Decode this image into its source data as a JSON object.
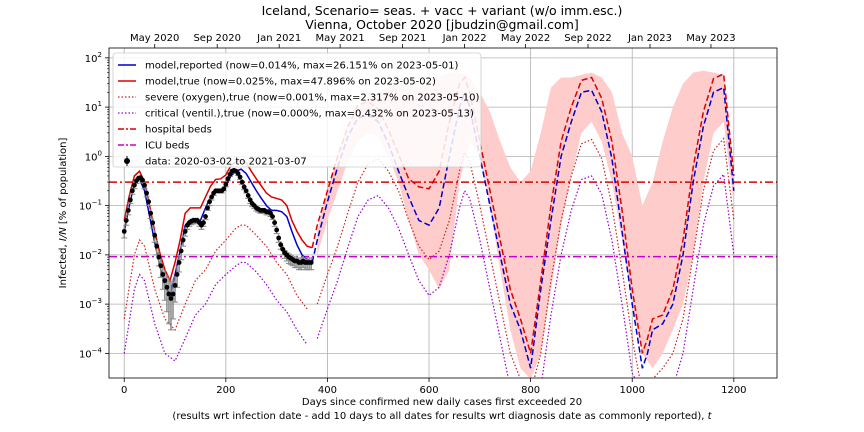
{
  "chart_data": {
    "type": "line",
    "title_line1": "Iceland, Scenario= seas. + vacc + variant (w/o imm.esc.)",
    "title_line2": "Vienna, October 2020 [jbudzin@gmail.com]",
    "xlabel": "Days since confirmed new daily cases first exceeded 20",
    "xlabel_line2_prefix": "(results wrt infection date - add 10 days to all dates for results wrt diagnosis date as commonly reported), ",
    "xlabel_line2_var": "t",
    "ylabel_prefix": "Infected, ",
    "ylabel_var": "I/N",
    "ylabel_suffix": " [% of population]",
    "xlim": [
      -30,
      1285
    ],
    "ylim_log10": [
      -4.5,
      2.2
    ],
    "log_scale_y": true,
    "grid": true,
    "legend_placement": "top-left",
    "x_ticks": [
      0,
      200,
      400,
      600,
      800,
      1000,
      1200
    ],
    "x_tick_labels": [
      "0",
      "200",
      "400",
      "600",
      "800",
      "1000",
      "1200"
    ],
    "y_ticks_log10": [
      -4,
      -3,
      -2,
      -1,
      0,
      1,
      2
    ],
    "y_tick_labels": [
      {
        "base": "10",
        "exp": "−4"
      },
      {
        "base": "10",
        "exp": "−3"
      },
      {
        "base": "10",
        "exp": "−2"
      },
      {
        "base": "10",
        "exp": "−1"
      },
      {
        "base": "10",
        "exp": "0"
      },
      {
        "base": "10",
        "exp": "1"
      },
      {
        "base": "10",
        "exp": "2"
      }
    ],
    "top_axis_ticks": [
      {
        "x": 60,
        "label": "May 2020"
      },
      {
        "x": 183,
        "label": "Sep 2020"
      },
      {
        "x": 305,
        "label": "Jan 2021"
      },
      {
        "x": 425,
        "label": "May 2021"
      },
      {
        "x": 548,
        "label": "Sep 2021"
      },
      {
        "x": 670,
        "label": "Jan 2022"
      },
      {
        "x": 790,
        "label": "May 2022"
      },
      {
        "x": 913,
        "label": "Sep 2022"
      },
      {
        "x": 1035,
        "label": "Jan 2023"
      },
      {
        "x": 1155,
        "label": "May 2023"
      }
    ],
    "legend": [
      {
        "key": "reported",
        "label": "model,reported (now=0.014%, max=26.151% on 2023-05-01)"
      },
      {
        "key": "true",
        "label": "model,true (now=0.025%, max=47.896% on 2023-05-02)"
      },
      {
        "key": "severe",
        "label": "severe (oxygen),true (now=0.001%, max=2.317% on 2023-05-10)"
      },
      {
        "key": "critical",
        "label": "critical (ventil.),true (now=0.000%, max=0.432% on 2023-05-13)"
      },
      {
        "key": "hospital",
        "label": "hospital beds"
      },
      {
        "key": "icu",
        "label": "ICU beds"
      },
      {
        "key": "data",
        "label": "data: 2020-03-02 to 2021-03-07"
      }
    ],
    "colors": {
      "reported": "#0000cc",
      "true": "#dd0000",
      "severe": "#cc2222",
      "critical": "#9900cc",
      "hospital": "#dd0000",
      "icu": "#cc00cc",
      "band": "#ffcccc",
      "data": "#000000",
      "errorbar": "#888888"
    },
    "hospital_beds_pct": 0.3,
    "icu_beds_pct": 0.0092,
    "data_day_range": [
      0,
      370
    ],
    "series": [
      {
        "key": "reported",
        "x": [
          0,
          10,
          20,
          30,
          40,
          50,
          60,
          70,
          80,
          90,
          100,
          110,
          120,
          130,
          140,
          150,
          160,
          170,
          180,
          190,
          200,
          210,
          220,
          230,
          240,
          250,
          260,
          270,
          280,
          290,
          300,
          310,
          320,
          330,
          340,
          350,
          360,
          370,
          380,
          400,
          420,
          440,
          460,
          480,
          500,
          520,
          540,
          560,
          580,
          600,
          620,
          640,
          660,
          670,
          680,
          700,
          720,
          740,
          760,
          780,
          800,
          820,
          840,
          860,
          880,
          900,
          920,
          940,
          960,
          980,
          1000,
          1020,
          1030,
          1040,
          1060,
          1080,
          1100,
          1120,
          1140,
          1160,
          1180,
          1200
        ],
        "y": [
          0.03,
          0.1,
          0.28,
          0.35,
          0.2,
          0.06,
          0.018,
          0.006,
          0.0025,
          0.0015,
          0.004,
          0.012,
          0.04,
          0.05,
          0.05,
          0.05,
          0.09,
          0.15,
          0.2,
          0.2,
          0.25,
          0.4,
          0.5,
          0.55,
          0.45,
          0.3,
          0.2,
          0.14,
          0.1,
          0.08,
          0.08,
          0.075,
          0.06,
          0.03,
          0.016,
          0.01,
          0.008,
          0.007,
          0.02,
          0.12,
          0.6,
          2.5,
          6,
          7,
          5,
          1.8,
          0.5,
          0.15,
          0.05,
          0.04,
          0.09,
          1,
          10,
          20,
          10,
          1,
          0.1,
          0.01,
          0.001,
          0.0003,
          5e-05,
          0.002,
          0.05,
          1,
          5,
          20,
          22,
          8,
          0.9,
          0.03,
          0.001,
          5e-05,
          0.0001,
          0.0003,
          0.0004,
          0.001,
          0.01,
          0.3,
          4,
          20,
          25,
          0.2
        ]
      },
      {
        "key": "true",
        "x": [
          0,
          10,
          20,
          30,
          40,
          50,
          60,
          70,
          80,
          90,
          100,
          110,
          120,
          130,
          140,
          150,
          160,
          170,
          180,
          190,
          200,
          210,
          220,
          230,
          240,
          250,
          260,
          270,
          280,
          290,
          300,
          310,
          320,
          330,
          340,
          350,
          360,
          370,
          380,
          400,
          420,
          440,
          460,
          480,
          500,
          520,
          540,
          560,
          580,
          600,
          620,
          640,
          660,
          670,
          680,
          700,
          720,
          740,
          760,
          780,
          800,
          820,
          840,
          860,
          880,
          900,
          920,
          940,
          960,
          980,
          1000,
          1020,
          1030,
          1040,
          1060,
          1080,
          1100,
          1120,
          1140,
          1160,
          1180,
          1200
        ],
        "y": [
          0.05,
          0.16,
          0.4,
          0.5,
          0.3,
          0.1,
          0.03,
          0.011,
          0.005,
          0.003,
          0.007,
          0.02,
          0.07,
          0.09,
          0.09,
          0.09,
          0.15,
          0.25,
          0.34,
          0.35,
          0.42,
          0.65,
          0.8,
          0.85,
          0.75,
          0.5,
          0.35,
          0.25,
          0.18,
          0.15,
          0.14,
          0.13,
          0.1,
          0.05,
          0.03,
          0.02,
          0.015,
          0.014,
          0.04,
          0.2,
          1,
          4,
          11,
          13,
          9,
          3.5,
          1.1,
          0.35,
          0.24,
          0.22,
          0.5,
          5,
          30,
          40,
          20,
          2,
          0.2,
          0.02,
          0.002,
          0.0005,
          0.0001,
          0.003,
          0.1,
          2,
          10,
          35,
          40,
          15,
          2,
          0.08,
          0.002,
          0.0001,
          0.0002,
          0.0005,
          0.0006,
          0.002,
          0.02,
          0.6,
          8,
          38,
          47,
          0.4
        ]
      },
      {
        "key": "severe",
        "x": [
          0,
          20,
          30,
          40,
          60,
          80,
          100,
          120,
          140,
          160,
          180,
          200,
          220,
          230,
          240,
          260,
          280,
          300,
          320,
          340,
          360,
          380,
          400,
          420,
          440,
          460,
          480,
          500,
          520,
          540,
          560,
          580,
          600,
          620,
          640,
          660,
          670,
          680,
          700,
          720,
          740,
          760,
          780,
          800,
          820,
          840,
          860,
          880,
          900,
          920,
          940,
          960,
          980,
          1000,
          1020,
          1040,
          1060,
          1080,
          1100,
          1120,
          1140,
          1160,
          1180,
          1200
        ],
        "y": [
          0.0005,
          0.01,
          0.02,
          0.015,
          0.002,
          0.0005,
          0.0003,
          0.001,
          0.003,
          0.005,
          0.012,
          0.02,
          0.035,
          0.04,
          0.04,
          0.025,
          0.015,
          0.007,
          0.004,
          0.0015,
          0.0008,
          0.001,
          0.004,
          0.015,
          0.07,
          0.3,
          0.7,
          0.9,
          0.5,
          0.2,
          0.05,
          0.015,
          0.008,
          0.012,
          0.05,
          0.5,
          1.2,
          0.8,
          0.1,
          0.01,
          0.001,
          0.0001,
          3e-05,
          1e-05,
          0.0001,
          0.003,
          0.05,
          0.4,
          1.8,
          2.2,
          0.9,
          0.1,
          0.005,
          0.0002,
          1e-05,
          3e-05,
          5e-05,
          0.0001,
          0.0005,
          0.01,
          0.2,
          1.3,
          2.3,
          0.05
        ]
      },
      {
        "key": "critical",
        "x": [
          0,
          20,
          30,
          40,
          60,
          80,
          100,
          120,
          140,
          160,
          180,
          200,
          220,
          230,
          240,
          260,
          280,
          300,
          320,
          340,
          360,
          380,
          400,
          420,
          440,
          460,
          480,
          500,
          520,
          540,
          560,
          580,
          600,
          620,
          640,
          660,
          670,
          680,
          700,
          720,
          740,
          760,
          780,
          800,
          820,
          840,
          860,
          880,
          900,
          920,
          940,
          960,
          980,
          1000,
          1020,
          1040,
          1060,
          1080,
          1100,
          1120,
          1140,
          1160,
          1180,
          1200
        ],
        "y": [
          0.0001,
          0.002,
          0.004,
          0.003,
          0.0004,
          0.0001,
          7e-05,
          0.0002,
          0.0006,
          0.001,
          0.0025,
          0.004,
          0.006,
          0.007,
          0.007,
          0.0045,
          0.0025,
          0.0012,
          0.0007,
          0.0003,
          0.00015,
          0.0002,
          0.0008,
          0.003,
          0.014,
          0.06,
          0.13,
          0.16,
          0.09,
          0.035,
          0.01,
          0.003,
          0.0015,
          0.0022,
          0.01,
          0.09,
          0.2,
          0.14,
          0.02,
          0.002,
          0.0002,
          2e-05,
          6e-06,
          3e-06,
          2e-05,
          0.0006,
          0.01,
          0.08,
          0.34,
          0.4,
          0.17,
          0.02,
          0.001,
          4e-05,
          3e-06,
          6e-06,
          1e-05,
          2e-05,
          0.0001,
          0.002,
          0.04,
          0.25,
          0.43,
          0.01
        ]
      }
    ],
    "band": {
      "x": [
        380,
        400,
        420,
        440,
        460,
        480,
        500,
        520,
        540,
        560,
        580,
        600,
        620,
        640,
        660,
        680,
        700,
        720,
        740,
        760,
        780,
        800,
        820,
        840,
        860,
        880,
        900,
        920,
        940,
        960,
        980,
        1000,
        1020,
        1040,
        1060,
        1080,
        1100,
        1120,
        1140,
        1160,
        1180,
        1200
      ],
      "upper": [
        0.03,
        0.2,
        1,
        4,
        10,
        15,
        20,
        25,
        30,
        28,
        25,
        30,
        40,
        50,
        50,
        40,
        20,
        8,
        2,
        0.6,
        0.3,
        0.5,
        3,
        25,
        40,
        40,
        45,
        50,
        40,
        20,
        3,
        1,
        0.1,
        0.3,
        2,
        10,
        30,
        50,
        55,
        50,
        45,
        0.6
      ],
      "lower": [
        0.01,
        0.05,
        0.2,
        0.8,
        2,
        3,
        2.5,
        1,
        0.3,
        0.05,
        0.01,
        0.005,
        0.002,
        0.005,
        0.3,
        2,
        1,
        0.1,
        0.005,
        0.0003,
        5e-05,
        3e-05,
        0.0001,
        0.002,
        0.04,
        0.4,
        3,
        5,
        2,
        0.3,
        0.02,
        0.001,
        0.0001,
        5e-05,
        0.0001,
        0.0003,
        0.001,
        0.01,
        0.3,
        3,
        5,
        0.1
      ]
    },
    "observations": {
      "x": [
        0,
        4,
        8,
        12,
        16,
        20,
        24,
        28,
        32,
        36,
        40,
        44,
        48,
        52,
        56,
        60,
        64,
        68,
        72,
        76,
        80,
        84,
        88,
        92,
        96,
        100,
        104,
        108,
        112,
        116,
        120,
        124,
        128,
        132,
        136,
        140,
        144,
        148,
        152,
        156,
        160,
        164,
        168,
        172,
        176,
        180,
        184,
        188,
        192,
        196,
        200,
        204,
        208,
        212,
        216,
        220,
        224,
        228,
        232,
        236,
        240,
        244,
        248,
        252,
        256,
        260,
        264,
        268,
        272,
        276,
        280,
        284,
        288,
        292,
        296,
        300,
        304,
        308,
        312,
        316,
        320,
        324,
        328,
        332,
        336,
        340,
        344,
        348,
        352,
        356,
        360,
        364,
        368
      ],
      "y": [
        0.03,
        0.05,
        0.08,
        0.13,
        0.2,
        0.26,
        0.32,
        0.36,
        0.37,
        0.33,
        0.26,
        0.18,
        0.12,
        0.07,
        0.045,
        0.025,
        0.015,
        0.009,
        0.006,
        0.004,
        0.003,
        0.0022,
        0.0016,
        0.0013,
        0.0016,
        0.0024,
        0.004,
        0.007,
        0.012,
        0.02,
        0.03,
        0.04,
        0.045,
        0.048,
        0.05,
        0.05,
        0.05,
        0.045,
        0.04,
        0.045,
        0.06,
        0.09,
        0.12,
        0.15,
        0.18,
        0.2,
        0.2,
        0.2,
        0.2,
        0.22,
        0.27,
        0.35,
        0.43,
        0.5,
        0.52,
        0.5,
        0.45,
        0.38,
        0.3,
        0.24,
        0.2,
        0.16,
        0.13,
        0.11,
        0.1,
        0.09,
        0.085,
        0.08,
        0.08,
        0.08,
        0.075,
        0.075,
        0.07,
        0.06,
        0.045,
        0.032,
        0.022,
        0.016,
        0.013,
        0.011,
        0.01,
        0.009,
        0.0085,
        0.008,
        0.0075,
        0.0075,
        0.007,
        0.007,
        0.0075,
        0.007,
        0.007,
        0.007,
        0.007
      ],
      "err_lo": [
        0.022,
        0.04,
        0.065,
        0.11,
        0.17,
        0.22,
        0.28,
        0.32,
        0.33,
        0.29,
        0.22,
        0.15,
        0.1,
        0.055,
        0.035,
        0.018,
        0.01,
        0.006,
        0.0035,
        0.002,
        0.0012,
        0.0007,
        0.0004,
        0.0003,
        0.0005,
        0.0011,
        0.0022,
        0.0045,
        0.008,
        0.015,
        0.024,
        0.033,
        0.038,
        0.041,
        0.043,
        0.043,
        0.043,
        0.038,
        0.033,
        0.038,
        0.052,
        0.08,
        0.1,
        0.13,
        0.16,
        0.18,
        0.18,
        0.18,
        0.18,
        0.2,
        0.24,
        0.32,
        0.39,
        0.46,
        0.48,
        0.46,
        0.41,
        0.34,
        0.27,
        0.21,
        0.18,
        0.14,
        0.11,
        0.095,
        0.087,
        0.078,
        0.074,
        0.07,
        0.07,
        0.07,
        0.065,
        0.065,
        0.06,
        0.052,
        0.038,
        0.027,
        0.018,
        0.013,
        0.01,
        0.0085,
        0.0075,
        0.0067,
        0.0063,
        0.006,
        0.0055,
        0.0055,
        0.005,
        0.005,
        0.0055,
        0.005,
        0.005,
        0.005,
        0.005
      ],
      "err_hi": [
        0.038,
        0.06,
        0.095,
        0.15,
        0.23,
        0.3,
        0.36,
        0.4,
        0.41,
        0.37,
        0.3,
        0.21,
        0.14,
        0.085,
        0.055,
        0.032,
        0.02,
        0.012,
        0.009,
        0.006,
        0.005,
        0.004,
        0.0035,
        0.003,
        0.0032,
        0.0038,
        0.006,
        0.01,
        0.016,
        0.025,
        0.036,
        0.047,
        0.052,
        0.055,
        0.057,
        0.057,
        0.057,
        0.052,
        0.047,
        0.052,
        0.068,
        0.1,
        0.14,
        0.17,
        0.2,
        0.22,
        0.22,
        0.22,
        0.22,
        0.24,
        0.3,
        0.38,
        0.47,
        0.54,
        0.56,
        0.54,
        0.49,
        0.42,
        0.33,
        0.27,
        0.22,
        0.18,
        0.15,
        0.125,
        0.113,
        0.102,
        0.096,
        0.09,
        0.09,
        0.09,
        0.085,
        0.085,
        0.08,
        0.068,
        0.052,
        0.037,
        0.026,
        0.019,
        0.016,
        0.0135,
        0.0125,
        0.0113,
        0.0107,
        0.01,
        0.0095,
        0.0095,
        0.009,
        0.009,
        0.0095,
        0.009,
        0.009,
        0.009,
        0.009
      ]
    }
  }
}
